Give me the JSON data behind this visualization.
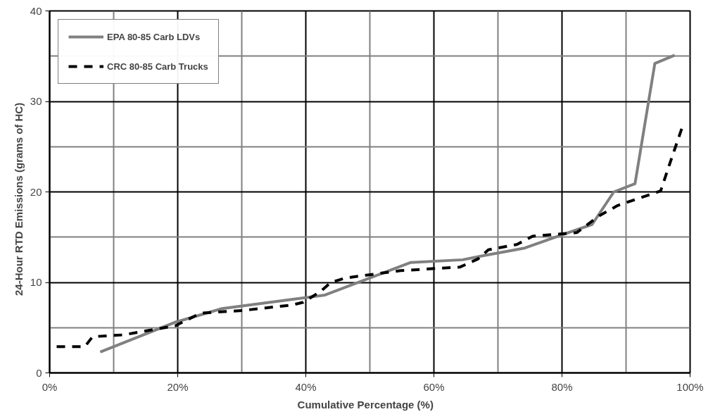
{
  "chart_data": {
    "type": "line",
    "xlabel": "Cumulative Percentage    (%)",
    "ylabel": "24-Hour  RTD  Emissions  (grams  of  HC)",
    "xlim": [
      0,
      100
    ],
    "ylim": [
      0,
      40
    ],
    "xticks": [
      {
        "value": 0,
        "label": "0%"
      },
      {
        "value": 20,
        "label": "20%"
      },
      {
        "value": 40,
        "label": "40%"
      },
      {
        "value": 60,
        "label": "60%"
      },
      {
        "value": 80,
        "label": "80%"
      },
      {
        "value": 100,
        "label": "100%"
      }
    ],
    "yticks": [
      0,
      10,
      20,
      30,
      40
    ],
    "grid": true,
    "legend": "top left",
    "marker": "none",
    "series": [
      {
        "name": "EPA 80-85 Carb LDVs",
        "color": "#808080",
        "line_style": "solid",
        "x": [
          7.9,
          19.6,
          26.9,
          43,
          56.4,
          64.5,
          67.3,
          74.2,
          79.4,
          84.7,
          88.1,
          91.4,
          94.5,
          97.6
        ],
        "values": [
          2.3,
          5.6,
          7.1,
          8.6,
          12.2,
          12.5,
          12.9,
          13.8,
          15.1,
          16.4,
          20,
          20.9,
          34.2,
          35.1
        ]
      },
      {
        "name": "CRC 80-85 Carb Trucks",
        "color": "#000000",
        "line_style": "dashed",
        "x": [
          1.1,
          5.5,
          6.7,
          11.5,
          19.6,
          23.6,
          30.2,
          37.8,
          39.6,
          42.3,
          43.9,
          46.3,
          54.8,
          64.1,
          66.9,
          68.5,
          73,
          75.4,
          82.3,
          85.9,
          88.7,
          95.4,
          97.2,
          98.8
        ],
        "values": [
          2.9,
          2.9,
          4.0,
          4.2,
          5.2,
          6.6,
          6.9,
          7.5,
          7.8,
          9.0,
          10.0,
          10.5,
          11.3,
          11.7,
          12.6,
          13.6,
          14.2,
          15.1,
          15.5,
          17.4,
          18.5,
          20.1,
          23.9,
          27.2
        ]
      }
    ]
  }
}
